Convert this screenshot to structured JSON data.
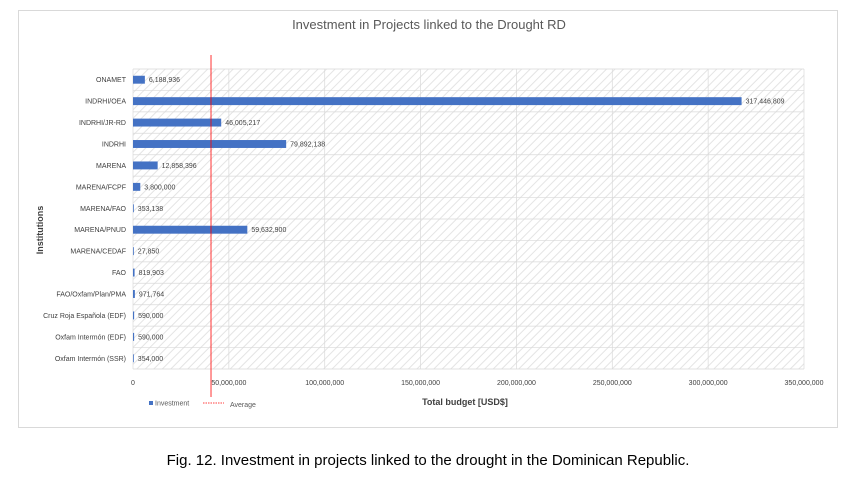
{
  "chart_data": {
    "type": "bar",
    "orientation": "horizontal",
    "title": "Investment in Projects linked to the Drought RD",
    "xlabel": "Total budget [USD$]",
    "ylabel": "Institutions",
    "categories": [
      "ONAMET",
      "INDRHI/OEA",
      "INDRHI/JR-RD",
      "INDRHI",
      "MARENA",
      "MARENA/FCPF",
      "MARENA/FAO",
      "MARENA/PNUD",
      "MARENA/CEDAF",
      "FAO",
      "FAO/Oxfam/Plan/PMA",
      "Cruz Roja Española (EDF)",
      "Oxfam Intermón (EDF)",
      "Oxfam Intermón (SSR)"
    ],
    "series": [
      {
        "name": "Investment",
        "color": "#4472c4",
        "values": [
          6188936,
          317446809,
          46005217,
          79892138,
          12858396,
          3800000,
          353138,
          59632900,
          27850,
          819903,
          971764,
          590000,
          590000,
          354000
        ],
        "value_labels": [
          "6,188,936",
          "317,446,809",
          "46,005,217",
          "79,892,138",
          "12,858,396",
          "3,800,000",
          "353,138",
          "59,632,900",
          "27,850",
          "819,903",
          "971,764",
          "590,000",
          "590,000",
          "354,000"
        ]
      }
    ],
    "reference_line": {
      "name": "Average",
      "value": 40690000,
      "color": "#ff0000"
    },
    "xlim": [
      0,
      350000000
    ],
    "xticks": [
      0,
      50000000,
      100000000,
      150000000,
      200000000,
      250000000,
      300000000,
      350000000
    ],
    "xtick_labels": [
      "0",
      "50,000,000",
      "100,000,000",
      "150,000,000",
      "200,000,000",
      "250,000,000",
      "300,000,000",
      "350,000,000"
    ],
    "grid": true,
    "legend_position": "bottom-left"
  },
  "caption": "Fig. 12. Investment in projects linked to the drought in the Dominican Republic."
}
